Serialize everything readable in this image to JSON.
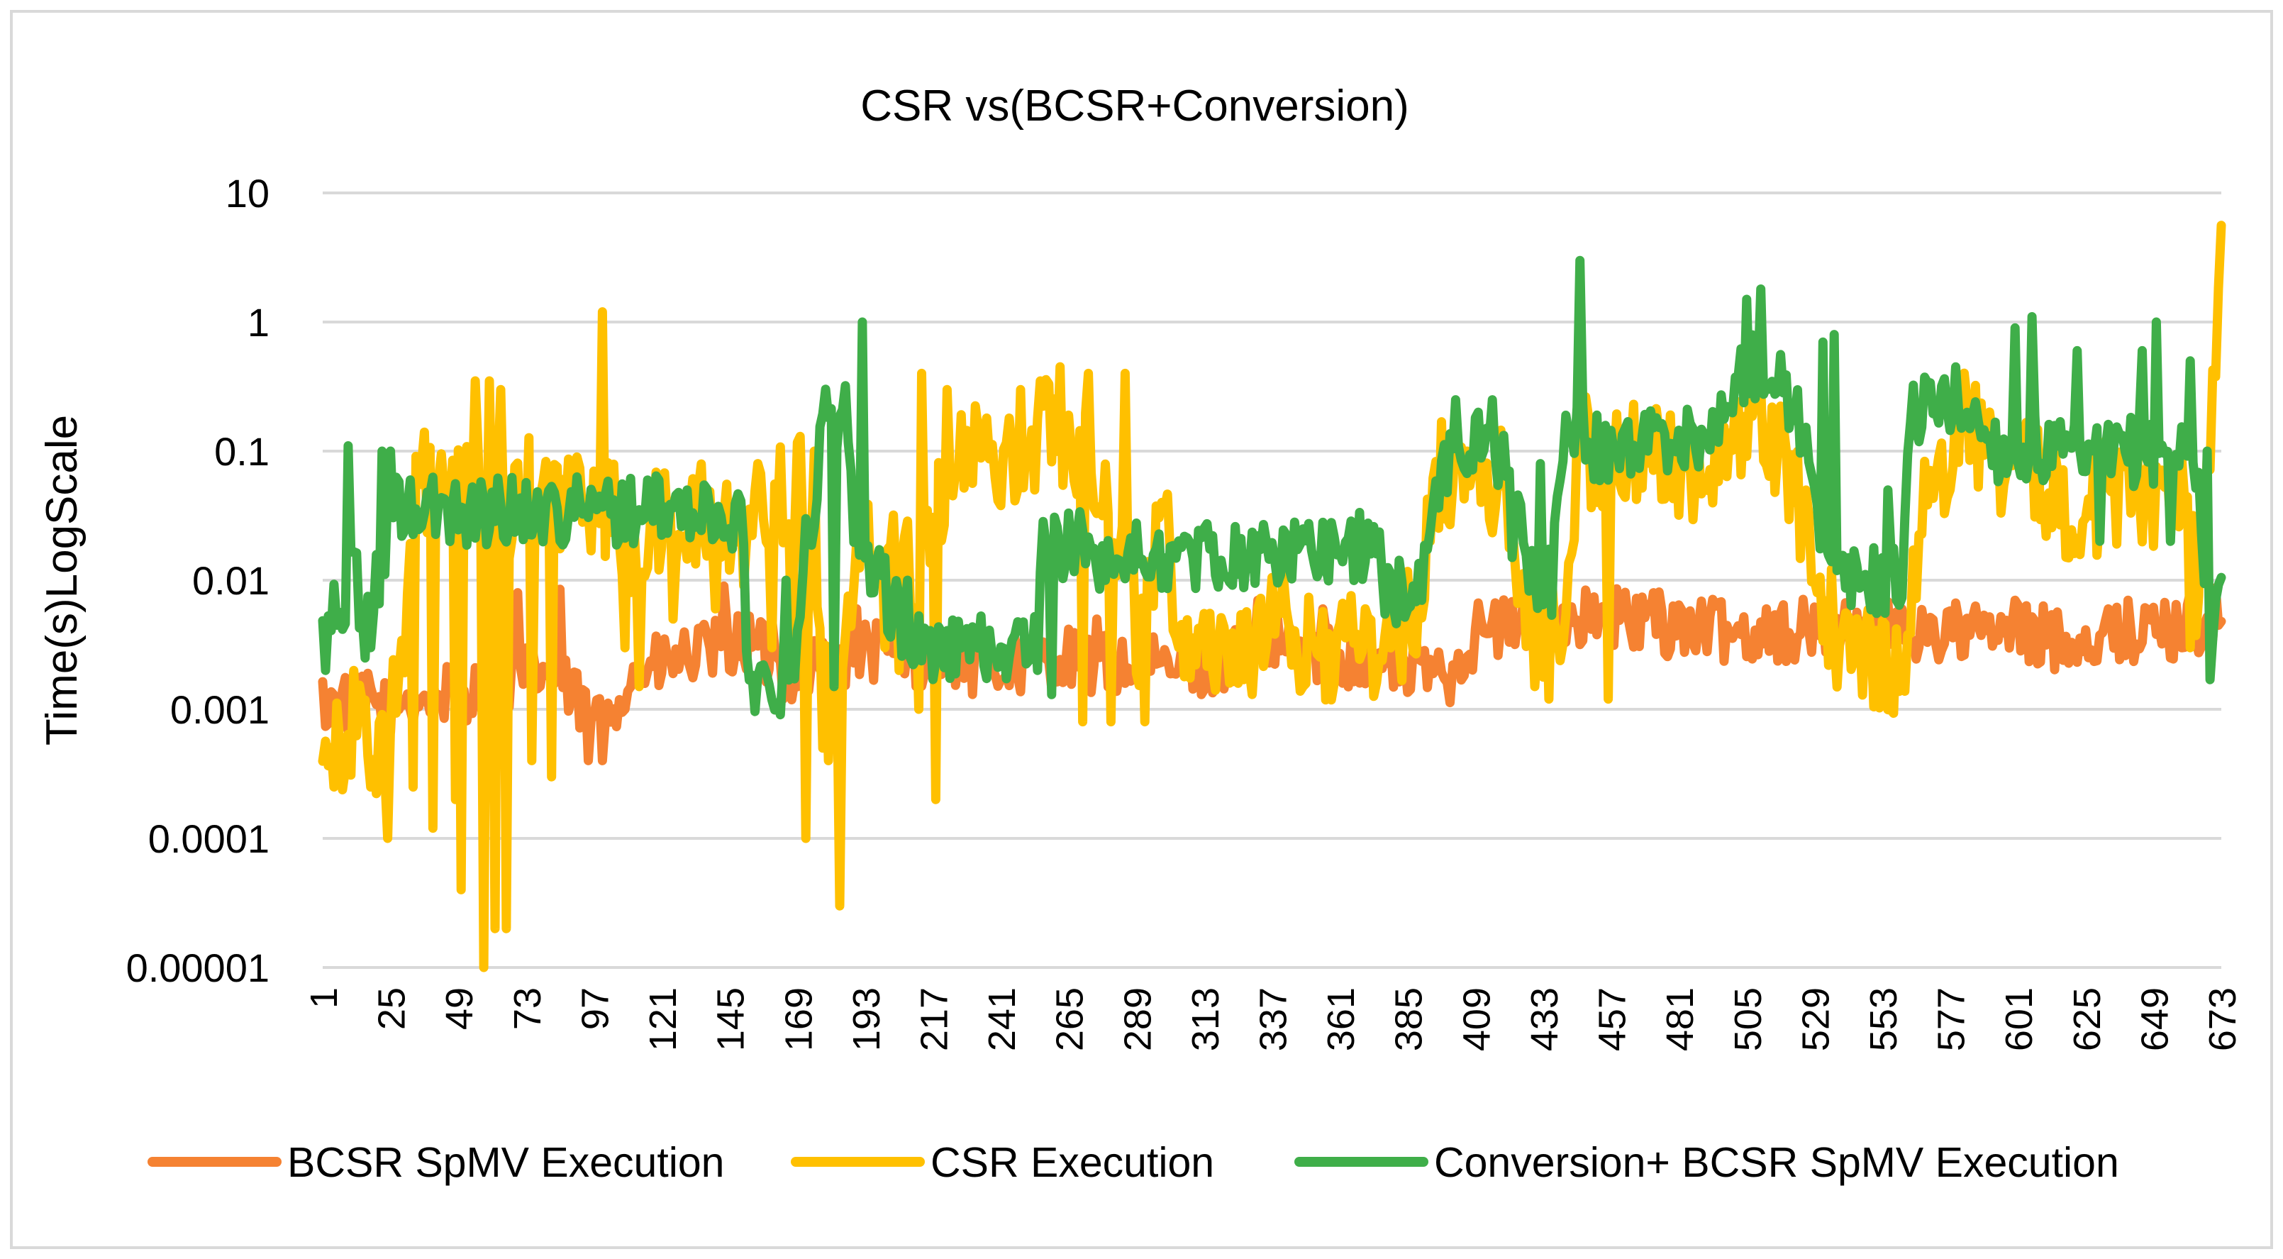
{
  "chart_data": {
    "type": "line",
    "title": "CSR vs(BCSR+Conversion)",
    "xlabel": "",
    "ylabel": "Time(s)LogScale",
    "y_scale": "log",
    "ylim": [
      1e-05,
      10
    ],
    "y_ticks": [
      "10",
      "1",
      "0.1",
      "0.01",
      "0.001",
      "0.0001",
      "0.00001"
    ],
    "x_range": [
      1,
      673
    ],
    "x_ticks": [
      "1",
      "25",
      "49",
      "73",
      "97",
      "121",
      "145",
      "169",
      "193",
      "217",
      "241",
      "265",
      "289",
      "313",
      "337",
      "361",
      "385",
      "409",
      "433",
      "457",
      "481",
      "505",
      "529",
      "553",
      "577",
      "601",
      "625",
      "649",
      "673"
    ],
    "grid": true,
    "legend_position": "bottom",
    "series": [
      {
        "name": "BCSR SpMV Execution",
        "color": "#F58232",
        "knots": [
          [
            1,
            0.0011
          ],
          [
            20,
            0.0011
          ],
          [
            30,
            0.0012
          ],
          [
            55,
            0.0014
          ],
          [
            80,
            0.002
          ],
          [
            98,
            0.0008
          ],
          [
            110,
            0.0018
          ],
          [
            130,
            0.0025
          ],
          [
            145,
            0.003
          ],
          [
            150,
            0.0035
          ],
          [
            165,
            0.002
          ],
          [
            185,
            0.0025
          ],
          [
            200,
            0.003
          ],
          [
            215,
            0.0025
          ],
          [
            240,
            0.0022
          ],
          [
            260,
            0.0025
          ],
          [
            280,
            0.0022
          ],
          [
            300,
            0.002
          ],
          [
            340,
            0.003
          ],
          [
            370,
            0.0025
          ],
          [
            385,
            0.002
          ],
          [
            400,
            0.002
          ],
          [
            410,
            0.004
          ],
          [
            440,
            0.005
          ],
          [
            460,
            0.005
          ],
          [
            500,
            0.004
          ],
          [
            540,
            0.004
          ],
          [
            580,
            0.004
          ],
          [
            620,
            0.0035
          ],
          [
            650,
            0.004
          ],
          [
            673,
            0.005
          ]
        ],
        "noise": 0.5,
        "spikes": [
          [
            60,
            0.006
          ],
          [
            70,
            0.008
          ],
          [
            85,
            0.0085
          ],
          [
            95,
            0.0004
          ],
          [
            100,
            0.0004
          ],
          [
            108,
            0.001
          ],
          [
            138,
            0.003
          ],
          [
            143,
            0.009
          ],
          [
            160,
            0.005
          ],
          [
            170,
            0.005
          ],
          [
            180,
            0.0012
          ],
          [
            190,
            0.006
          ],
          [
            205,
            0.006
          ],
          [
            230,
            0.004
          ],
          [
            275,
            0.005
          ],
          [
            290,
            0.004
          ],
          [
            318,
            0.003
          ],
          [
            332,
            0.007
          ],
          [
            355,
            0.006
          ],
          [
            420,
            0.006
          ],
          [
            472,
            0.008
          ],
          [
            512,
            0.006
          ],
          [
            560,
            0.006
          ],
          [
            600,
            0.007
          ],
          [
            640,
            0.007
          ],
          [
            662,
            0.008
          ]
        ]
      },
      {
        "name": "CSR Execution",
        "color": "#FFC000",
        "knots": [
          [
            1,
            0.0008
          ],
          [
            10,
            0.0006
          ],
          [
            20,
            0.0006
          ],
          [
            26,
            0.001
          ],
          [
            30,
            0.0025
          ],
          [
            34,
            0.05
          ],
          [
            40,
            0.06
          ],
          [
            50,
            0.04
          ],
          [
            70,
            0.03
          ],
          [
            75,
            0.05
          ],
          [
            90,
            0.04
          ],
          [
            100,
            0.04
          ],
          [
            110,
            0.02
          ],
          [
            120,
            0.025
          ],
          [
            135,
            0.03
          ],
          [
            148,
            0.02
          ],
          [
            155,
            0.03
          ],
          [
            162,
            0.05
          ],
          [
            172,
            0.05
          ],
          [
            178,
            0.0015
          ],
          [
            190,
            0.01
          ],
          [
            198,
            0.03
          ],
          [
            208,
            0.015
          ],
          [
            215,
            0.02
          ],
          [
            222,
            0.08
          ],
          [
            235,
            0.08
          ],
          [
            245,
            0.1
          ],
          [
            255,
            0.15
          ],
          [
            265,
            0.15
          ],
          [
            275,
            0.08
          ],
          [
            282,
            0.02
          ],
          [
            290,
            0.004
          ],
          [
            298,
            0.03
          ],
          [
            305,
            0.004
          ],
          [
            320,
            0.003
          ],
          [
            340,
            0.004
          ],
          [
            350,
            0.003
          ],
          [
            370,
            0.003
          ],
          [
            380,
            0.003
          ],
          [
            388,
            0.006
          ],
          [
            395,
            0.06
          ],
          [
            405,
            0.07
          ],
          [
            418,
            0.06
          ],
          [
            426,
            0.005
          ],
          [
            440,
            0.005
          ],
          [
            445,
            0.1
          ],
          [
            470,
            0.08
          ],
          [
            500,
            0.08
          ],
          [
            510,
            0.2
          ],
          [
            520,
            0.06
          ],
          [
            528,
            0.02
          ],
          [
            534,
            0.006
          ],
          [
            540,
            0.0025
          ],
          [
            560,
            0.0025
          ],
          [
            568,
            0.03
          ],
          [
            580,
            0.2
          ],
          [
            600,
            0.07
          ],
          [
            620,
            0.04
          ],
          [
            645,
            0.05
          ],
          [
            660,
            0.05
          ],
          [
            664,
            0.01
          ],
          [
            668,
            0.1
          ],
          [
            671,
            0.5
          ],
          [
            673,
            5
          ]
        ],
        "noise": 0.9,
        "spikes": [
          [
            5,
            0.00025
          ],
          [
            12,
            0.002
          ],
          [
            18,
            0.00025
          ],
          [
            24,
            0.0001
          ],
          [
            33,
            0.00025
          ],
          [
            40,
            0.00012
          ],
          [
            48,
            0.0002
          ],
          [
            50,
            4e-05
          ],
          [
            55,
            0.35
          ],
          [
            58,
            1e-05
          ],
          [
            60,
            0.35
          ],
          [
            62,
            2e-05
          ],
          [
            64,
            0.3
          ],
          [
            66,
            2e-05
          ],
          [
            75,
            0.0004
          ],
          [
            82,
            0.0003
          ],
          [
            100,
            1.2
          ],
          [
            108,
            0.003
          ],
          [
            113,
            0.0015
          ],
          [
            125,
            0.005
          ],
          [
            140,
            0.006
          ],
          [
            155,
            0.08
          ],
          [
            160,
            0.003
          ],
          [
            167,
            0.003
          ],
          [
            170,
            0.13
          ],
          [
            172,
            0.0001
          ],
          [
            175,
            0.1
          ],
          [
            178,
            0.0005
          ],
          [
            180,
            0.0004
          ],
          [
            182,
            0.0006
          ],
          [
            184,
            3e-05
          ],
          [
            190,
            0.02
          ],
          [
            200,
            0.003
          ],
          [
            205,
            0.002
          ],
          [
            212,
            0.001
          ],
          [
            213,
            0.4
          ],
          [
            218,
            0.0002
          ],
          [
            222,
            0.3
          ],
          [
            255,
            0.35
          ],
          [
            262,
            0.45
          ],
          [
            270,
            0.0008
          ],
          [
            272,
            0.4
          ],
          [
            280,
            0.0008
          ],
          [
            285,
            0.4
          ],
          [
            292,
            0.0008
          ],
          [
            298,
            0.04
          ],
          [
            335,
            0.003
          ],
          [
            342,
            0.006
          ],
          [
            348,
            0.0015
          ],
          [
            370,
            0.006
          ],
          [
            430,
            0.0015
          ],
          [
            435,
            0.0012
          ],
          [
            452,
            0.04
          ],
          [
            456,
            0.0012
          ],
          [
            510,
            0.3
          ],
          [
            530,
            0.008
          ],
          [
            662,
            0.003
          ]
        ]
      },
      {
        "name": "Conversion+ BCSR SpMV Execution",
        "color": "#3FAE49",
        "knots": [
          [
            1,
            0.005
          ],
          [
            8,
            0.005
          ],
          [
            12,
            0.02
          ],
          [
            16,
            0.003
          ],
          [
            20,
            0.01
          ],
          [
            22,
            0.003
          ],
          [
            24,
            0.035
          ],
          [
            40,
            0.035
          ],
          [
            60,
            0.035
          ],
          [
            80,
            0.035
          ],
          [
            100,
            0.035
          ],
          [
            120,
            0.035
          ],
          [
            140,
            0.03
          ],
          [
            149,
            0.03
          ],
          [
            152,
            0.0017
          ],
          [
            168,
            0.0017
          ],
          [
            172,
            0.01
          ],
          [
            178,
            0.2
          ],
          [
            186,
            0.2
          ],
          [
            190,
            0.02
          ],
          [
            205,
            0.005
          ],
          [
            210,
            0.003
          ],
          [
            220,
            0.003
          ],
          [
            240,
            0.003
          ],
          [
            252,
            0.003
          ],
          [
            256,
            0.018
          ],
          [
            270,
            0.018
          ],
          [
            278,
            0.015
          ],
          [
            300,
            0.015
          ],
          [
            340,
            0.016
          ],
          [
            360,
            0.018
          ],
          [
            375,
            0.018
          ],
          [
            378,
            0.007
          ],
          [
            390,
            0.01
          ],
          [
            394,
            0.04
          ],
          [
            400,
            0.1
          ],
          [
            420,
            0.1
          ],
          [
            428,
            0.01
          ],
          [
            436,
            0.01
          ],
          [
            442,
            0.2
          ],
          [
            450,
            0.1
          ],
          [
            470,
            0.12
          ],
          [
            495,
            0.14
          ],
          [
            505,
            0.5
          ],
          [
            515,
            0.4
          ],
          [
            522,
            0.3
          ],
          [
            528,
            0.05
          ],
          [
            534,
            0.01
          ],
          [
            550,
            0.01
          ],
          [
            560,
            0.01
          ],
          [
            563,
            0.2
          ],
          [
            580,
            0.25
          ],
          [
            595,
            0.1
          ],
          [
            610,
            0.1
          ],
          [
            625,
            0.08
          ],
          [
            640,
            0.1
          ],
          [
            650,
            0.1
          ],
          [
            660,
            0.1
          ],
          [
            665,
            0.05
          ],
          [
            669,
            0.003
          ],
          [
            673,
            0.01
          ]
        ],
        "noise": 0.55,
        "spikes": [
          [
            2,
            0.002
          ],
          [
            10,
            0.11
          ],
          [
            22,
            0.1
          ],
          [
            25,
            0.1
          ],
          [
            130,
            0.05
          ],
          [
            165,
            0.01
          ],
          [
            172,
            0.03
          ],
          [
            182,
            0.0015
          ],
          [
            192,
            1.0
          ],
          [
            196,
            0.008
          ],
          [
            200,
            0.015
          ],
          [
            208,
            0.01
          ],
          [
            215,
            0.004
          ],
          [
            228,
            0.004
          ],
          [
            254,
            0.002
          ],
          [
            259,
            0.0013
          ],
          [
            348,
            0.025
          ],
          [
            402,
            0.25
          ],
          [
            410,
            0.2
          ],
          [
            415,
            0.25
          ],
          [
            422,
            0.015
          ],
          [
            432,
            0.08
          ],
          [
            446,
            3.0
          ],
          [
            462,
            0.15
          ],
          [
            505,
            1.5
          ],
          [
            510,
            1.8
          ],
          [
            520,
            0.15
          ],
          [
            532,
            0.7
          ],
          [
            536,
            0.8
          ],
          [
            555,
            0.05
          ],
          [
            572,
            0.2
          ],
          [
            600,
            0.9
          ],
          [
            606,
            1.1
          ],
          [
            622,
            0.6
          ],
          [
            630,
            0.02
          ],
          [
            645,
            0.6
          ],
          [
            650,
            1.0
          ],
          [
            655,
            0.02
          ],
          [
            662,
            0.5
          ],
          [
            668,
            0.1
          ]
        ]
      }
    ]
  }
}
